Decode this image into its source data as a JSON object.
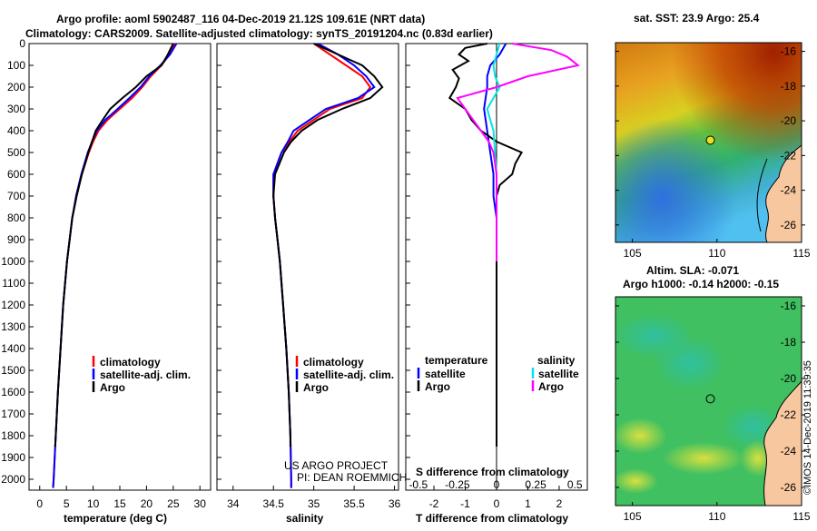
{
  "title": {
    "line1": "Argo profile: aoml 5902487_116 04-Dec-2019 21.12S 109.61E (NRT data)",
    "line2": "Climatology: CARS2009. Satellite-adjusted climatology: synTS_20191204.nc (0.83d earlier)"
  },
  "credit": {
    "project": "US ARGO PROJECT",
    "pi": "PI: DEAN ROEMMICH",
    "imos": "©IMOS 14-Dec-2019 11:39:35"
  },
  "colors": {
    "climatology": "#ff0000",
    "satellite": "#0000ff",
    "argo": "#000000",
    "cyan": "#00e5e5",
    "magenta": "#ff00ff",
    "land": "#f7c8a0"
  },
  "chart_data": [
    {
      "type": "line",
      "name": "temperature",
      "xlabel": "temperature (deg C)",
      "ylabel": "depth",
      "xlim": [
        -2,
        32
      ],
      "ylim": [
        2050,
        0
      ],
      "xticks": [
        "0",
        "5",
        "10",
        "15",
        "20",
        "25",
        "30"
      ],
      "xtick_values": [
        0,
        5,
        10,
        15,
        20,
        25,
        30
      ],
      "yticks": [
        "0",
        "100",
        "200",
        "300",
        "400",
        "500",
        "600",
        "700",
        "800",
        "900",
        "1000",
        "1100",
        "1200",
        "1300",
        "1400",
        "1500",
        "1600",
        "1700",
        "1800",
        "1900",
        "2000"
      ],
      "ytick_values": [
        0,
        100,
        200,
        300,
        400,
        500,
        600,
        700,
        800,
        900,
        1000,
        1100,
        1200,
        1300,
        1400,
        1500,
        1600,
        1700,
        1800,
        1900,
        2000
      ],
      "legend": [
        "climatology",
        "satellite-adj. clim.",
        "Argo"
      ],
      "series": [
        {
          "name": "climatology",
          "color": "#ff0000",
          "depth": [
            0,
            50,
            100,
            150,
            200,
            250,
            300,
            350,
            400,
            450,
            500,
            600,
            700,
            800,
            900,
            1000,
            1200,
            1400,
            1600,
            1800,
            2000,
            2040
          ],
          "values": [
            25.3,
            24.3,
            22.8,
            20.8,
            19.2,
            17.3,
            15.0,
            12.7,
            11.0,
            10.0,
            9.2,
            7.9,
            6.9,
            6.1,
            5.6,
            5.1,
            4.4,
            3.9,
            3.4,
            3.0,
            2.6,
            2.5
          ]
        },
        {
          "name": "satellite",
          "color": "#0000ff",
          "depth": [
            0,
            50,
            100,
            150,
            200,
            250,
            300,
            350,
            400,
            450,
            500,
            600,
            700,
            800,
            900,
            1000,
            1200,
            1400,
            1600,
            1800,
            2000,
            2040
          ],
          "values": [
            25.6,
            24.4,
            22.6,
            20.5,
            18.9,
            16.8,
            14.6,
            12.3,
            10.7,
            9.8,
            9.0,
            7.8,
            6.8,
            6.1,
            5.6,
            5.1,
            4.4,
            3.9,
            3.4,
            3.0,
            2.6,
            2.5
          ]
        },
        {
          "name": "argo",
          "color": "#000000",
          "depth": [
            0,
            50,
            100,
            150,
            200,
            250,
            300,
            350,
            400,
            450,
            500,
            550,
            600,
            700,
            800,
            900,
            1000,
            1200,
            1400,
            1600,
            1800,
            1850
          ],
          "values": [
            25.0,
            24.0,
            22.8,
            20.0,
            18.0,
            15.5,
            13.2,
            11.8,
            10.5,
            9.8,
            9.1,
            8.5,
            7.9,
            6.9,
            6.1,
            5.6,
            5.1,
            4.4,
            3.9,
            3.4,
            3.0,
            2.9
          ]
        }
      ]
    },
    {
      "type": "line",
      "name": "salinity",
      "xlabel": "salinity",
      "ylabel": "depth",
      "xlim": [
        33.8,
        36.05
      ],
      "ylim": [
        2050,
        0
      ],
      "xticks": [
        "34",
        "34.5",
        "35",
        "35.5",
        "36"
      ],
      "xtick_values": [
        34,
        34.5,
        35,
        35.5,
        36
      ],
      "legend": [
        "climatology",
        "satellite-adj. clim.",
        "Argo"
      ],
      "series": [
        {
          "name": "climatology",
          "color": "#ff0000",
          "depth": [
            0,
            50,
            100,
            150,
            200,
            250,
            300,
            350,
            400,
            450,
            500,
            600,
            700,
            800,
            900,
            1000,
            1200,
            1400,
            1600,
            1800,
            2000,
            2040
          ],
          "values": [
            35.0,
            35.2,
            35.4,
            35.6,
            35.7,
            35.6,
            35.2,
            35.0,
            34.8,
            34.7,
            34.6,
            34.5,
            34.5,
            34.52,
            34.55,
            34.58,
            34.62,
            34.66,
            34.69,
            34.71,
            34.72,
            34.72
          ]
        },
        {
          "name": "satellite",
          "color": "#0000ff",
          "depth": [
            0,
            50,
            100,
            150,
            200,
            250,
            300,
            350,
            400,
            450,
            500,
            600,
            700,
            800,
            900,
            1000,
            1200,
            1400,
            1600,
            1800,
            2000,
            2040
          ],
          "values": [
            35.05,
            35.3,
            35.5,
            35.65,
            35.75,
            35.55,
            35.15,
            34.95,
            34.75,
            34.68,
            34.6,
            34.5,
            34.5,
            34.52,
            34.55,
            34.58,
            34.62,
            34.66,
            34.69,
            34.71,
            34.72,
            34.72
          ]
        },
        {
          "name": "argo",
          "color": "#000000",
          "depth": [
            0,
            50,
            100,
            150,
            200,
            250,
            300,
            350,
            400,
            450,
            500,
            600,
            700,
            800,
            900,
            1000,
            1200,
            1400,
            1600,
            1800,
            1850
          ],
          "values": [
            35.0,
            35.3,
            35.6,
            35.75,
            35.85,
            35.7,
            35.35,
            35.05,
            34.85,
            34.72,
            34.63,
            34.52,
            34.5,
            34.52,
            34.55,
            34.58,
            34.62,
            34.66,
            34.69,
            34.71,
            34.71
          ]
        }
      ]
    },
    {
      "type": "line",
      "name": "difference",
      "xlabel": "T difference from climatology",
      "xlabel2": "S difference from climatology",
      "xlim": [
        -2.9,
        2.9
      ],
      "ylim": [
        2050,
        0
      ],
      "xticks": [
        "-2",
        "-1",
        "0",
        "1",
        "2"
      ],
      "xtick_values": [
        -2,
        -1,
        0,
        1,
        2
      ],
      "xticks_s": [
        "-0.5",
        "-0.25",
        "0",
        "0.25",
        "0.5"
      ],
      "xtick_s_values": [
        -0.5,
        -0.25,
        0,
        0.25,
        0.5
      ],
      "legend_temperature": {
        "title": "temperature",
        "items": [
          "satellite",
          "Argo"
        ]
      },
      "legend_salinity": {
        "title": "salinity",
        "items": [
          "satellite",
          "Argo"
        ]
      },
      "series": [
        {
          "name": "T satellite",
          "color": "#0000ff",
          "depth": [
            0,
            50,
            100,
            150,
            200,
            300,
            400,
            500,
            600,
            700,
            800,
            900,
            1000,
            1100,
            1150
          ],
          "values": [
            0.3,
            0.1,
            -0.2,
            -0.3,
            -0.3,
            -0.4,
            -0.3,
            -0.2,
            -0.1,
            -0.1,
            0.0,
            0.0,
            0.0,
            0.0,
            0.0
          ]
        },
        {
          "name": "T argo",
          "color": "#000000",
          "depth": [
            0,
            20,
            50,
            80,
            120,
            160,
            200,
            250,
            300,
            350,
            400,
            450,
            500,
            550,
            600,
            650,
            700,
            800,
            900,
            1000,
            1200,
            1400,
            1600,
            1800,
            1850
          ],
          "values": [
            -0.3,
            -1.0,
            -1.2,
            -0.9,
            -1.4,
            -1.2,
            -1.3,
            -1.5,
            -1.0,
            -0.8,
            -0.5,
            0.0,
            0.8,
            0.6,
            0.5,
            0.1,
            0.0,
            0.0,
            0.0,
            0.0,
            0.0,
            0.0,
            0.0,
            0.0,
            0.0
          ]
        },
        {
          "name": "S satellite",
          "color": "#00e5e5",
          "depth": [
            0,
            50,
            100,
            150,
            200,
            250,
            300,
            350,
            400,
            500,
            600,
            700,
            800
          ],
          "values": [
            0.02,
            0.0,
            -0.02,
            -0.01,
            0.02,
            -0.02,
            -0.06,
            -0.04,
            -0.02,
            -0.01,
            0.0,
            0.0,
            0.0
          ]
        },
        {
          "name": "S argo",
          "color": "#ff00ff",
          "depth": [
            0,
            30,
            60,
            100,
            150,
            200,
            250,
            300,
            350,
            400,
            450,
            500,
            600,
            700,
            800,
            900,
            1000
          ],
          "values": [
            0.1,
            0.35,
            0.45,
            0.52,
            0.2,
            0.0,
            -0.25,
            -0.2,
            -0.15,
            -0.1,
            -0.05,
            -0.02,
            0.0,
            0.0,
            0.0,
            0.0,
            0.0
          ]
        }
      ]
    },
    {
      "type": "heatmap",
      "name": "sst-map",
      "title": "sat. SST: 23.9 Argo: 25.4",
      "xlim": [
        104,
        115
      ],
      "ylim": [
        -27,
        -15.5
      ],
      "xticks": [
        "105",
        "110",
        "115"
      ],
      "xtick_values": [
        105,
        110,
        115
      ],
      "yticks": [
        "-16",
        "-18",
        "-20",
        "-22",
        "-24",
        "-26"
      ],
      "ytick_values": [
        -16,
        -18,
        -20,
        -22,
        -24,
        -26
      ],
      "marker": {
        "lon": 109.61,
        "lat": -21.12
      }
    },
    {
      "type": "heatmap",
      "name": "sla-map",
      "title": "Altim. SLA: -0.071",
      "subtitle": "Argo h1000: -0.14 h2000: -0.15",
      "xlim": [
        104,
        115
      ],
      "ylim": [
        -27,
        -15.5
      ],
      "xticks": [
        "105",
        "110",
        "115"
      ],
      "xtick_values": [
        105,
        110,
        115
      ],
      "yticks": [
        "-16",
        "-18",
        "-20",
        "-22",
        "-24",
        "-26"
      ],
      "ytick_values": [
        -16,
        -18,
        -20,
        -22,
        -24,
        -26
      ],
      "marker": {
        "lon": 109.61,
        "lat": -21.12
      }
    }
  ]
}
